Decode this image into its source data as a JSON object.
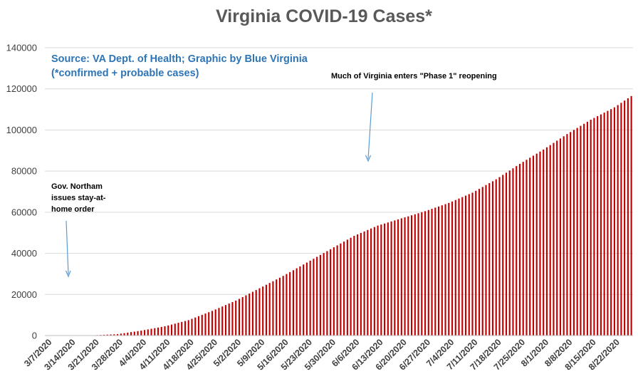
{
  "chart_data": {
    "type": "bar",
    "title": "Virginia COVID-19 Cases*",
    "source_line1": "Source: VA Dept. of Health; Graphic by Blue Virginia",
    "source_line2": "(*confirmed + probable cases)",
    "ylim": [
      0,
      140000
    ],
    "yticks": [
      0,
      20000,
      40000,
      60000,
      80000,
      100000,
      120000,
      140000
    ],
    "grid": true,
    "legend": "none",
    "bar_color": "#c00000",
    "start_date": "2020-03-07",
    "xtick_labels": [
      "3/7/2020",
      "3/14/2020",
      "3/21/2020",
      "3/28/2020",
      "4/4/2020",
      "4/11/2020",
      "4/18/2020",
      "4/25/2020",
      "5/2/2020",
      "5/9/2020",
      "5/16/2020",
      "5/23/2020",
      "5/30/2020",
      "6/6/2020",
      "6/13/2020",
      "6/20/2020",
      "6/27/2020",
      "7/4/2020",
      "7/11/2020",
      "7/18/2020",
      "7/25/2020",
      "8/1/2020",
      "8/8/2020",
      "8/15/2020",
      "8/22/2020"
    ],
    "anchor_values": [
      {
        "date": "3/7/2020",
        "value": 0
      },
      {
        "date": "3/14/2020",
        "value": 40
      },
      {
        "date": "3/21/2020",
        "value": 150
      },
      {
        "date": "3/28/2020",
        "value": 700
      },
      {
        "date": "4/4/2020",
        "value": 2400
      },
      {
        "date": "4/11/2020",
        "value": 4500
      },
      {
        "date": "4/18/2020",
        "value": 7500
      },
      {
        "date": "4/25/2020",
        "value": 12000
      },
      {
        "date": "5/2/2020",
        "value": 17000
      },
      {
        "date": "5/9/2020",
        "value": 23000
      },
      {
        "date": "5/16/2020",
        "value": 29000
      },
      {
        "date": "5/23/2020",
        "value": 35500
      },
      {
        "date": "5/30/2020",
        "value": 42000
      },
      {
        "date": "6/6/2020",
        "value": 48500
      },
      {
        "date": "6/13/2020",
        "value": 53500
      },
      {
        "date": "6/20/2020",
        "value": 57000
      },
      {
        "date": "6/27/2020",
        "value": 60500
      },
      {
        "date": "7/4/2020",
        "value": 64500
      },
      {
        "date": "7/11/2020",
        "value": 69500
      },
      {
        "date": "7/18/2020",
        "value": 76000
      },
      {
        "date": "7/25/2020",
        "value": 83500
      },
      {
        "date": "8/1/2020",
        "value": 90500
      },
      {
        "date": "8/8/2020",
        "value": 98000
      },
      {
        "date": "8/15/2020",
        "value": 105000
      },
      {
        "date": "8/22/2020",
        "value": 111000
      },
      {
        "date": "8/27/2020",
        "value": 116500
      }
    ],
    "annotations": [
      {
        "lines": [
          "Gov. Northam",
          "issues stay-at-",
          "home order"
        ],
        "date": "3/30/2020"
      },
      {
        "lines": [
          "Much of Virginia enters \"Phase 1\" reopening"
        ],
        "date": "6/5/2020"
      }
    ]
  }
}
